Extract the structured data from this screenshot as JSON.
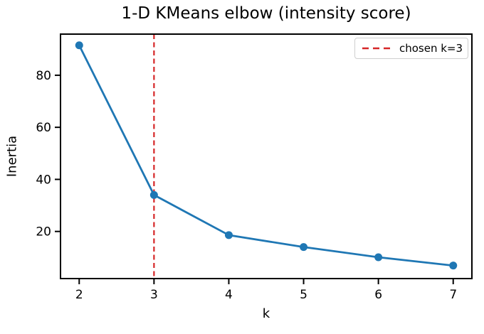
{
  "figure": {
    "title": "1-D KMeans elbow (intensity score)",
    "xlabel": "k",
    "ylabel": "Inertia"
  },
  "legend": {
    "entries": [
      {
        "label": "chosen k=3",
        "color": "#d62728",
        "line_style": "dashed"
      }
    ],
    "position": "upper right"
  },
  "chart_data": {
    "type": "line",
    "title": "1-D KMeans elbow (intensity score)",
    "xlabel": "k",
    "ylabel": "Inertia",
    "x": [
      2,
      3,
      4,
      5,
      6,
      7
    ],
    "series": [
      {
        "name": "inertia",
        "values": [
          91.5,
          34.0,
          18.6,
          14.0,
          10.1,
          6.9
        ],
        "color": "#1f77b4",
        "marker": "circle",
        "line_width": 2.8,
        "marker_radius": 5.5
      }
    ],
    "annotations": [
      {
        "type": "vline",
        "x": 3,
        "label": "chosen k=3",
        "color": "#d62728",
        "line_style": "dashed"
      }
    ],
    "xticks": [
      2,
      3,
      4,
      5,
      6,
      7
    ],
    "yticks": [
      20,
      40,
      60,
      80
    ],
    "xlim": [
      1.75,
      7.25
    ],
    "ylim": [
      1.9,
      95.8
    ],
    "grid": false,
    "legend_position": "upper right",
    "axes_color": "#000000",
    "background": "#ffffff"
  }
}
